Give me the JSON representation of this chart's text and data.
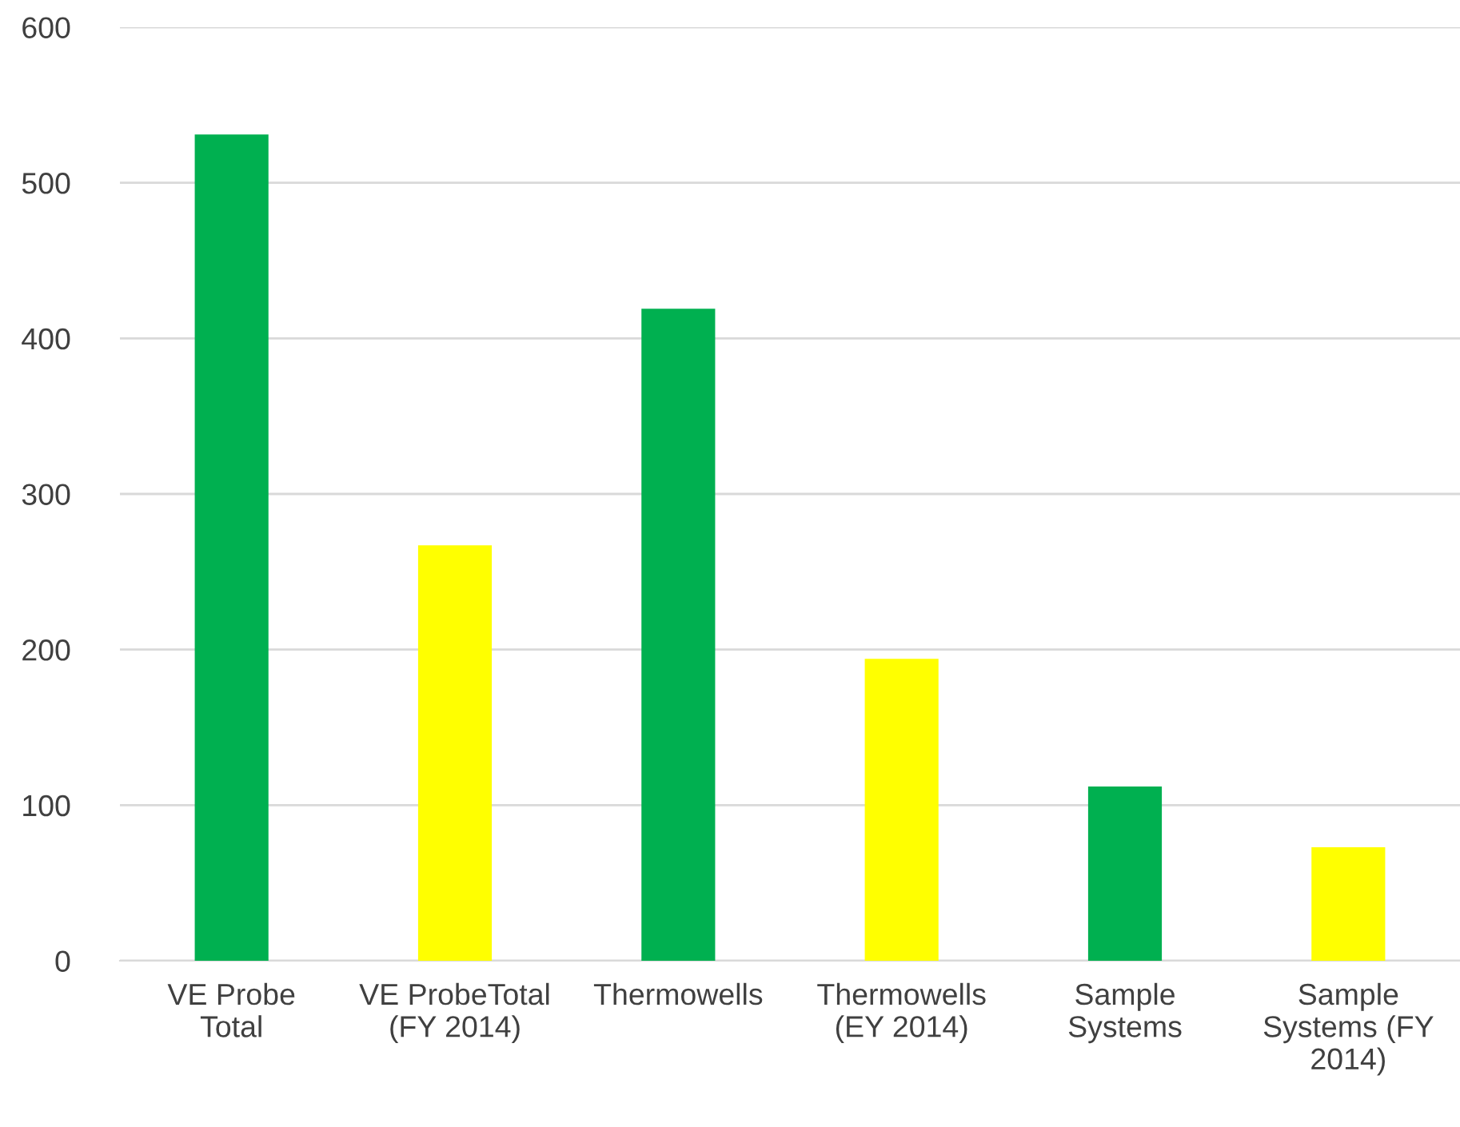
{
  "chart_data": {
    "type": "bar",
    "categories": [
      "VE Probe\nTotal",
      "VE ProbeTotal\n(FY 2014)",
      "Thermowells",
      "Thermowells\n(EY 2014)",
      "Sample\nSystems",
      "Sample\nSystems (FY\n2014)"
    ],
    "values": [
      531,
      267,
      419,
      194,
      112,
      73
    ],
    "colors": [
      "#00b050",
      "#ffff00",
      "#00b050",
      "#ffff00",
      "#00b050",
      "#ffff00"
    ],
    "ylim": [
      0,
      600
    ],
    "yticks": [
      0,
      100,
      200,
      300,
      400,
      500,
      600
    ],
    "grid": "y"
  }
}
